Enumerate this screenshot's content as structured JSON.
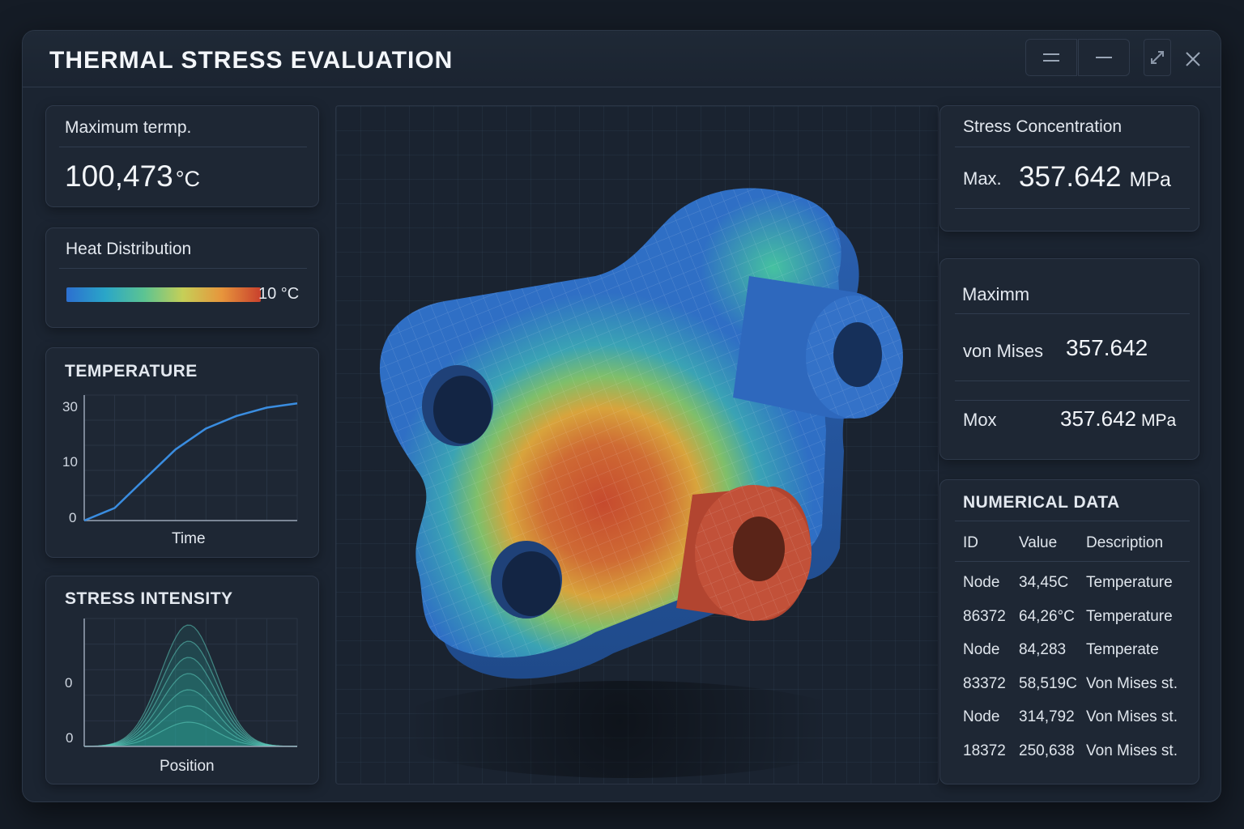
{
  "window": {
    "title": "THERMAL STRESS EVALUATION",
    "controls": [
      "menu-icon",
      "minimize-icon",
      "collapse-icon",
      "close-icon"
    ]
  },
  "max_temp": {
    "label": "Maximum termp.",
    "value": "100,473",
    "unit": "°C"
  },
  "heat_distribution": {
    "label": "Heat Distribution",
    "scale_label": "10 °C",
    "colors": [
      "#2c6fd0",
      "#2aa6c8",
      "#5cc492",
      "#c6cf57",
      "#e7953c",
      "#c9412d"
    ]
  },
  "temperature_chart": {
    "title": "TEMPERATURE",
    "xlabel": "Time",
    "y_ticks": [
      "30",
      "10",
      "0"
    ]
  },
  "stress_intensity_chart": {
    "title": "STRESS INTENSITY",
    "xlabel": "Position",
    "y_ticks": [
      "0",
      "0"
    ]
  },
  "stress_concentration": {
    "title": "Stress Concentration",
    "max_label": "Max.",
    "max_value": "357.642",
    "unit": "MPa"
  },
  "von_mises": {
    "heading": "Maximm",
    "label": "von Mises",
    "value": "357.642",
    "mox_label": "Mox",
    "mox_value": "357.642",
    "mox_unit": "MPa"
  },
  "numerical_data": {
    "title": "NUMERICAL DATA",
    "columns": [
      "ID",
      "Value",
      "Description"
    ],
    "rows": [
      [
        "Node",
        "34,45C",
        "Temperature"
      ],
      [
        "86372",
        "64,26°C",
        "Temperature"
      ],
      [
        "Node",
        "84,283",
        "Temperate"
      ],
      [
        "83372",
        "58,519C",
        "Von Mises st."
      ],
      [
        "Node",
        "314,792",
        "Von Mises st."
      ],
      [
        "18372",
        "250,638",
        "Von Mises st."
      ]
    ]
  },
  "chart_data": [
    {
      "type": "line",
      "title": "TEMPERATURE",
      "xlabel": "Time",
      "ylabel": "",
      "y_ticks": [
        "0",
        "10",
        "30"
      ],
      "series": [
        {
          "x": [
            0,
            1,
            2,
            3,
            4,
            5,
            6,
            7
          ],
          "values": [
            0,
            3,
            10,
            17,
            22,
            25,
            27,
            28
          ]
        }
      ],
      "grid": true,
      "color": "#3a8de0"
    },
    {
      "type": "area",
      "title": "STRESS INTENSITY",
      "xlabel": "Position",
      "ylabel": "",
      "y_ticks": [
        "0",
        "0"
      ],
      "series": [
        {
          "shape": "gaussian",
          "levels": 7
        }
      ],
      "grid": true,
      "color": "#2fb3a3"
    }
  ]
}
